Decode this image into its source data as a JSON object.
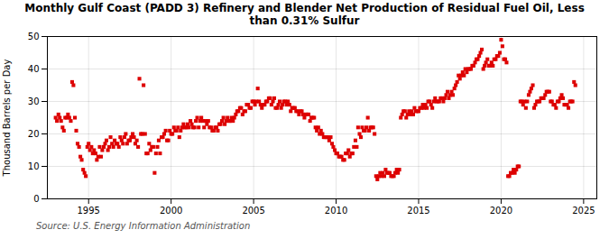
{
  "chart_data": {
    "type": "scatter",
    "title": "Monthly Gulf Coast (PADD 3) Refinery and Blender Net Production of Residual Fuel Oil, Less\nthan 0.31% Sulfur",
    "ylabel": "Thousand Barrels per Day",
    "source": "Source: U.S. Energy Information Administration",
    "color": "#dd0000",
    "marker": "square",
    "grid": true,
    "xlim": [
      1992.5,
      2025.8
    ],
    "xticks": [
      1995,
      2000,
      2005,
      2010,
      2015,
      2020,
      2025
    ],
    "ylim": [
      0,
      50
    ],
    "yticks": [
      0,
      10,
      20,
      30,
      40,
      50
    ],
    "x": [
      1993.0,
      1993.08,
      1993.17,
      1993.25,
      1993.33,
      1993.42,
      1993.5,
      1993.58,
      1993.67,
      1993.75,
      1993.83,
      1993.92,
      1994.0,
      1994.08,
      1994.17,
      1994.25,
      1994.33,
      1994.42,
      1994.5,
      1994.58,
      1994.67,
      1994.75,
      1994.83,
      1994.92,
      1995.0,
      1995.08,
      1995.17,
      1995.25,
      1995.33,
      1995.42,
      1995.5,
      1995.58,
      1995.67,
      1995.75,
      1995.83,
      1995.92,
      1996.0,
      1996.08,
      1996.17,
      1996.25,
      1996.33,
      1996.42,
      1996.5,
      1996.58,
      1996.67,
      1996.75,
      1996.83,
      1996.92,
      1997.0,
      1997.08,
      1997.17,
      1997.25,
      1997.33,
      1997.42,
      1997.5,
      1997.58,
      1997.67,
      1997.75,
      1997.83,
      1997.92,
      1998.0,
      1998.08,
      1998.17,
      1998.25,
      1998.33,
      1998.42,
      1998.5,
      1998.58,
      1998.67,
      1998.75,
      1998.83,
      1998.92,
      1999.0,
      1999.08,
      1999.17,
      1999.25,
      1999.33,
      1999.42,
      1999.5,
      1999.58,
      1999.67,
      1999.75,
      1999.83,
      1999.92,
      2000.0,
      2000.08,
      2000.17,
      2000.25,
      2000.33,
      2000.42,
      2000.5,
      2000.58,
      2000.67,
      2000.75,
      2000.83,
      2000.92,
      2001.0,
      2001.08,
      2001.17,
      2001.25,
      2001.33,
      2001.42,
      2001.5,
      2001.58,
      2001.67,
      2001.75,
      2001.83,
      2001.92,
      2002.0,
      2002.08,
      2002.17,
      2002.25,
      2002.33,
      2002.42,
      2002.5,
      2002.58,
      2002.67,
      2002.75,
      2002.83,
      2002.92,
      2003.0,
      2003.08,
      2003.17,
      2003.25,
      2003.33,
      2003.42,
      2003.5,
      2003.58,
      2003.67,
      2003.75,
      2003.83,
      2003.92,
      2004.0,
      2004.08,
      2004.17,
      2004.25,
      2004.33,
      2004.42,
      2004.5,
      2004.58,
      2004.67,
      2004.75,
      2004.83,
      2004.92,
      2005.0,
      2005.08,
      2005.17,
      2005.25,
      2005.33,
      2005.42,
      2005.5,
      2005.58,
      2005.67,
      2005.75,
      2005.83,
      2005.92,
      2006.0,
      2006.08,
      2006.17,
      2006.25,
      2006.33,
      2006.42,
      2006.5,
      2006.58,
      2006.67,
      2006.75,
      2006.83,
      2006.92,
      2007.0,
      2007.08,
      2007.17,
      2007.25,
      2007.33,
      2007.42,
      2007.5,
      2007.58,
      2007.67,
      2007.75,
      2007.83,
      2007.92,
      2008.0,
      2008.08,
      2008.17,
      2008.25,
      2008.33,
      2008.42,
      2008.5,
      2008.58,
      2008.67,
      2008.75,
      2008.83,
      2008.92,
      2009.0,
      2009.08,
      2009.17,
      2009.25,
      2009.33,
      2009.42,
      2009.5,
      2009.58,
      2009.67,
      2009.75,
      2009.83,
      2009.92,
      2010.0,
      2010.08,
      2010.17,
      2010.25,
      2010.33,
      2010.42,
      2010.5,
      2010.58,
      2010.67,
      2010.75,
      2010.83,
      2010.92,
      2011.0,
      2011.08,
      2011.17,
      2011.25,
      2011.33,
      2011.42,
      2011.5,
      2011.58,
      2011.67,
      2011.75,
      2011.83,
      2011.92,
      2012.0,
      2012.08,
      2012.17,
      2012.25,
      2012.33,
      2012.42,
      2012.5,
      2012.58,
      2012.67,
      2012.75,
      2012.83,
      2012.92,
      2013.0,
      2013.08,
      2013.17,
      2013.25,
      2013.33,
      2013.42,
      2013.5,
      2013.58,
      2013.67,
      2013.75,
      2013.83,
      2013.92,
      2014.0,
      2014.08,
      2014.17,
      2014.25,
      2014.33,
      2014.42,
      2014.5,
      2014.58,
      2014.67,
      2014.75,
      2014.83,
      2014.92,
      2015.0,
      2015.08,
      2015.17,
      2015.25,
      2015.33,
      2015.42,
      2015.5,
      2015.58,
      2015.67,
      2015.75,
      2015.83,
      2015.92,
      2016.0,
      2016.08,
      2016.17,
      2016.25,
      2016.33,
      2016.42,
      2016.5,
      2016.58,
      2016.67,
      2016.75,
      2016.83,
      2016.92,
      2017.0,
      2017.08,
      2017.17,
      2017.25,
      2017.33,
      2017.42,
      2017.5,
      2017.58,
      2017.67,
      2017.75,
      2017.83,
      2017.92,
      2018.0,
      2018.08,
      2018.17,
      2018.25,
      2018.33,
      2018.42,
      2018.5,
      2018.58,
      2018.67,
      2018.75,
      2018.83,
      2018.92,
      2019.0,
      2019.08,
      2019.17,
      2019.25,
      2019.33,
      2019.42,
      2019.5,
      2019.58,
      2019.67,
      2019.75,
      2019.83,
      2019.92,
      2020.0,
      2020.08,
      2020.17,
      2020.25,
      2020.33,
      2020.42,
      2020.5,
      2020.58,
      2020.67,
      2020.75,
      2020.83,
      2020.92,
      2021.0,
      2021.08,
      2021.17,
      2021.25,
      2021.33,
      2021.42,
      2021.5,
      2021.58,
      2021.67,
      2021.75,
      2021.83,
      2021.92,
      2022.0,
      2022.08,
      2022.17,
      2022.25,
      2022.33,
      2022.42,
      2022.5,
      2022.58,
      2022.67,
      2022.75,
      2022.83,
      2022.92,
      2023.0,
      2023.08,
      2023.17,
      2023.25,
      2023.33,
      2023.42,
      2023.5,
      2023.58,
      2023.67,
      2023.75,
      2023.83,
      2023.92,
      2024.0,
      2024.08,
      2024.17,
      2024.25,
      2024.33,
      2024.42,
      2024.5
    ],
    "values": [
      25,
      24,
      26,
      25,
      24,
      22,
      21,
      25,
      25,
      26,
      25,
      24,
      36,
      35,
      25,
      21,
      17,
      16,
      13,
      12,
      9,
      8,
      7,
      16,
      17,
      15,
      16,
      14,
      15,
      14,
      12,
      13,
      16,
      13,
      15,
      16,
      17,
      18,
      15,
      16,
      19,
      17,
      16,
      18,
      17,
      17,
      16,
      19,
      18,
      17,
      19,
      20,
      17,
      18,
      18,
      19,
      20,
      19,
      17,
      18,
      16,
      37,
      20,
      20,
      35,
      20,
      14,
      14,
      17,
      15,
      16,
      16,
      8,
      14,
      16,
      18,
      14,
      19,
      19,
      20,
      21,
      18,
      18,
      21,
      20,
      20,
      22,
      21,
      21,
      22,
      19,
      21,
      22,
      23,
      22,
      22,
      23,
      22,
      24,
      23,
      22,
      22,
      24,
      25,
      22,
      24,
      25,
      24,
      22,
      24,
      23,
      24,
      22,
      22,
      21,
      21,
      22,
      22,
      21,
      23,
      23,
      24,
      25,
      23,
      24,
      25,
      24,
      24,
      25,
      24,
      25,
      26,
      27,
      27,
      28,
      28,
      26,
      27,
      27,
      29,
      29,
      28,
      28,
      30,
      30,
      29,
      30,
      34,
      30,
      29,
      28,
      29,
      29,
      30,
      30,
      31,
      31,
      29,
      30,
      31,
      28,
      28,
      29,
      30,
      28,
      29,
      30,
      30,
      29,
      30,
      29,
      27,
      28,
      28,
      28,
      27,
      27,
      26,
      27,
      27,
      26,
      25,
      26,
      26,
      26,
      24,
      25,
      25,
      25,
      22,
      21,
      22,
      20,
      21,
      20,
      19,
      19,
      19,
      19,
      18,
      19,
      17,
      16,
      15,
      14,
      14,
      13,
      13,
      13,
      12,
      12,
      14,
      14,
      15,
      13,
      14,
      14,
      16,
      18,
      16,
      22,
      20,
      19,
      22,
      21,
      21,
      22,
      25,
      21,
      22,
      22,
      22,
      20,
      7,
      6,
      7,
      8,
      7,
      8,
      7,
      9,
      8,
      8,
      8,
      7,
      7,
      7,
      8,
      9,
      8,
      9,
      25,
      26,
      27,
      27,
      25,
      26,
      27,
      26,
      27,
      26,
      28,
      27,
      27,
      27,
      28,
      28,
      29,
      28,
      29,
      28,
      30,
      30,
      29,
      28,
      30,
      31,
      30,
      30,
      30,
      31,
      31,
      30,
      31,
      32,
      33,
      31,
      32,
      33,
      32,
      34,
      35,
      36,
      38,
      37,
      38,
      39,
      38,
      40,
      39,
      40,
      40,
      40,
      41,
      41,
      42,
      43,
      43,
      44,
      45,
      46,
      40,
      41,
      42,
      43,
      41,
      41,
      42,
      41,
      43,
      43,
      44,
      44,
      45,
      49,
      47,
      43,
      43,
      42,
      7,
      7,
      8,
      8,
      9,
      8,
      9,
      10,
      10,
      30,
      30,
      29,
      30,
      28,
      30,
      32,
      33,
      34,
      35,
      28,
      29,
      30,
      30,
      30,
      31,
      31,
      31,
      32,
      33,
      33,
      33,
      30,
      30,
      29,
      29,
      28,
      30,
      30,
      31,
      32,
      31,
      29,
      29,
      29,
      28,
      30,
      30,
      30,
      36,
      35
    ]
  }
}
